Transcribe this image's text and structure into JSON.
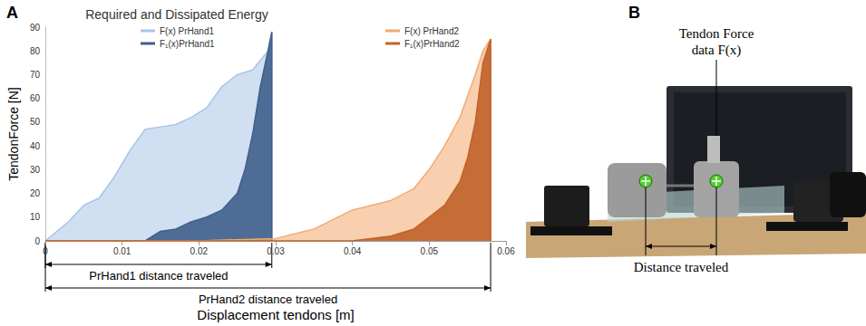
{
  "chart_data": {
    "type": "area",
    "title": "Required and Dissipated Energy",
    "panel_label": "A",
    "x_label": "Displacement tendons [m]",
    "y_label": "TendonForce [N]",
    "xlim": [
      0,
      0.06
    ],
    "xticks": [
      0,
      0.01,
      0.02,
      0.03,
      0.04,
      0.05,
      0.06
    ],
    "ylim": [
      0,
      90
    ],
    "yticks": [
      0,
      10,
      20,
      30,
      40,
      50,
      60,
      70,
      80,
      90
    ],
    "grid": false,
    "legend": "top",
    "series": [
      {
        "name": "F(x) PrHand1",
        "color": "#a9c4e8",
        "x": [
          0,
          0.003,
          0.005,
          0.007,
          0.009,
          0.011,
          0.013,
          0.015,
          0.017,
          0.019,
          0.021,
          0.023,
          0.025,
          0.027,
          0.029,
          0.0295,
          0.0295
        ],
        "values": [
          0,
          8,
          15,
          18,
          27,
          38,
          47,
          48,
          49,
          52,
          56,
          65,
          70,
          72,
          80,
          88,
          0
        ]
      },
      {
        "name": "F₁(x)PrHand1",
        "color": "#3f5f8c",
        "x": [
          0,
          0.013,
          0.015,
          0.017,
          0.019,
          0.021,
          0.023,
          0.025,
          0.026,
          0.027,
          0.028,
          0.029,
          0.0295,
          0.0295
        ],
        "values": [
          0,
          0,
          4,
          5,
          8,
          10,
          13,
          20,
          30,
          45,
          65,
          80,
          88,
          0
        ]
      },
      {
        "name": "F(x) PrHand2",
        "color": "#f4a96e",
        "x": [
          0,
          0.02,
          0.03,
          0.035,
          0.04,
          0.045,
          0.048,
          0.05,
          0.052,
          0.054,
          0.056,
          0.057,
          0.058,
          0.058
        ],
        "values": [
          0,
          0,
          1,
          5,
          13,
          17,
          22,
          30,
          40,
          52,
          70,
          80,
          85,
          0
        ]
      },
      {
        "name": "F₁(x)PrHand2",
        "color": "#c0622a",
        "x": [
          0,
          0.04,
          0.045,
          0.048,
          0.05,
          0.052,
          0.054,
          0.055,
          0.056,
          0.057,
          0.058,
          0.058
        ],
        "values": [
          0,
          0,
          2,
          5,
          10,
          15,
          25,
          35,
          50,
          75,
          85,
          0
        ]
      }
    ],
    "annotations": [
      {
        "text": "PrHand1 distance traveled",
        "x0": 0,
        "x1": 0.0295
      },
      {
        "text": "PrHand2 distance traveled",
        "x0": 0,
        "x1": 0.058
      }
    ]
  },
  "panel_b": {
    "label": "B",
    "callout": [
      "Tendon Force",
      "data F(x)"
    ],
    "dimension": "Distance traveled"
  }
}
